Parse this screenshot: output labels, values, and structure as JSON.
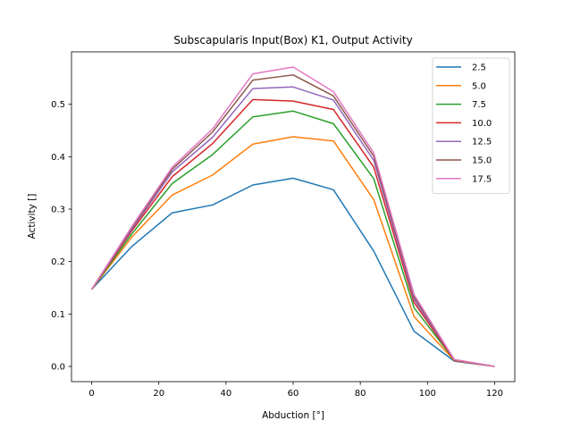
{
  "chart_data": {
    "type": "line",
    "title": "Subscapularis Input(Box) K1, Output Activity",
    "xlabel": "Abduction [°]",
    "ylabel": "Activity []",
    "xlim": [
      -6,
      126
    ],
    "ylim": [
      -0.029,
      0.6
    ],
    "xticks": [
      0,
      20,
      40,
      60,
      80,
      100,
      120
    ],
    "yticks": [
      0.0,
      0.1,
      0.2,
      0.3,
      0.4,
      0.5
    ],
    "ytick_labels": [
      "0.0",
      "0.1",
      "0.2",
      "0.3",
      "0.4",
      "0.5"
    ],
    "grid": false,
    "legend_position": "upper right",
    "x": [
      0,
      12,
      24,
      36,
      48,
      60,
      72,
      84,
      96,
      108,
      120
    ],
    "series": [
      {
        "name": "2.5",
        "color": "#1f77b4",
        "values": [
          0.147,
          0.229,
          0.293,
          0.308,
          0.346,
          0.359,
          0.337,
          0.22,
          0.067,
          0.01,
          0.0
        ]
      },
      {
        "name": "5.0",
        "color": "#ff7f0e",
        "values": [
          0.147,
          0.247,
          0.327,
          0.365,
          0.424,
          0.438,
          0.43,
          0.318,
          0.095,
          0.011,
          0.0
        ]
      },
      {
        "name": "7.5",
        "color": "#2ca02c",
        "values": [
          0.147,
          0.253,
          0.349,
          0.404,
          0.476,
          0.487,
          0.463,
          0.358,
          0.112,
          0.012,
          0.0
        ]
      },
      {
        "name": "10.0",
        "color": "#d62728",
        "values": [
          0.147,
          0.259,
          0.362,
          0.425,
          0.509,
          0.506,
          0.49,
          0.38,
          0.122,
          0.012,
          0.0
        ]
      },
      {
        "name": "12.5",
        "color": "#9467bd",
        "values": [
          0.147,
          0.262,
          0.371,
          0.437,
          0.53,
          0.533,
          0.508,
          0.393,
          0.128,
          0.013,
          0.0
        ]
      },
      {
        "name": "15.0",
        "color": "#8c564b",
        "values": [
          0.147,
          0.265,
          0.376,
          0.447,
          0.546,
          0.556,
          0.516,
          0.401,
          0.133,
          0.013,
          0.0
        ]
      },
      {
        "name": "17.5",
        "color": "#e377c2",
        "values": [
          0.147,
          0.267,
          0.38,
          0.453,
          0.558,
          0.571,
          0.524,
          0.407,
          0.137,
          0.013,
          0.0
        ]
      }
    ]
  }
}
